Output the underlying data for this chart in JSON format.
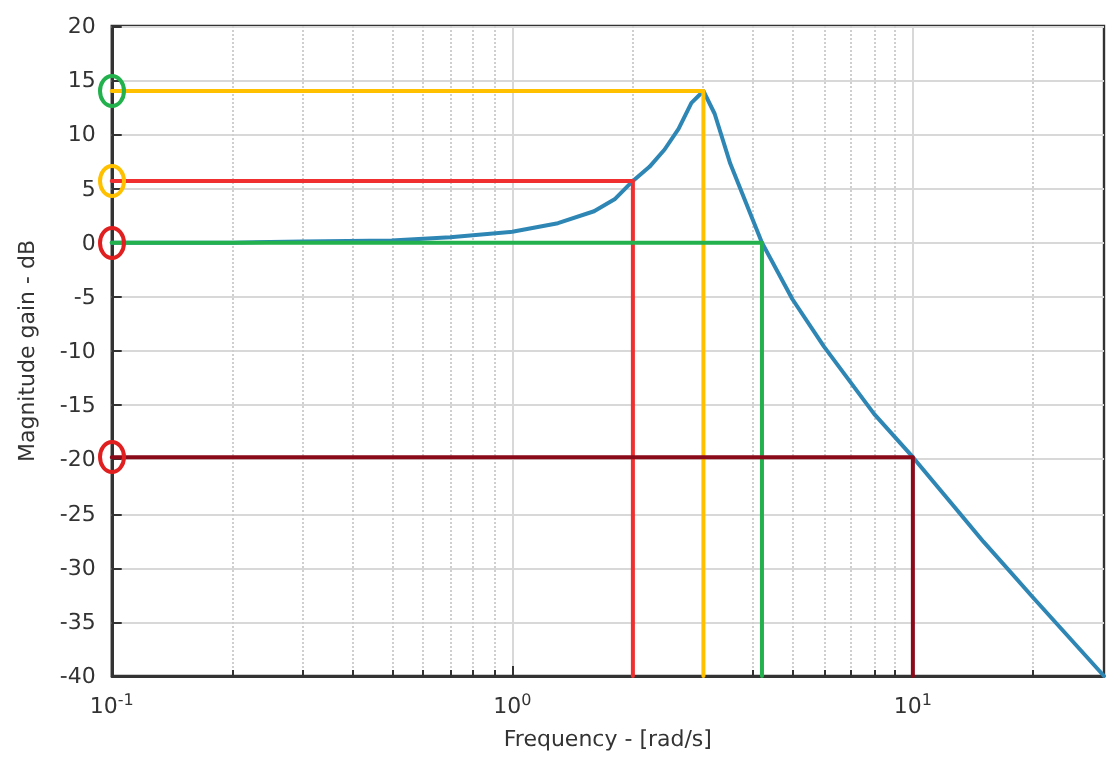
{
  "chart_data": {
    "type": "line",
    "xlabel": "Frequency - [rad/s]",
    "ylabel": "Magnitude gain - dB",
    "log": "x",
    "grid": true,
    "marker": "none",
    "line_style": "solid",
    "xlim": [
      0.1,
      30
    ],
    "xticks": [
      {
        "value": 0.1,
        "label": "10$^{-1}$"
      },
      {
        "value": 1,
        "label": "10$^{0}$"
      },
      {
        "value": 10,
        "label": "10$^{1}$"
      }
    ],
    "ylim": [
      -40,
      20
    ],
    "yticks": [
      -40,
      -35,
      -30,
      -25,
      -20,
      -15,
      -10,
      -5,
      0,
      5,
      10,
      15,
      20
    ],
    "series": [
      {
        "color": "#2e86b5",
        "x": [
          0.1,
          0.2,
          0.3,
          0.5,
          0.7,
          1.0,
          1.3,
          1.6,
          1.8,
          2.0,
          2.2,
          2.4,
          2.6,
          2.8,
          3.0,
          3.2,
          3.5,
          4.2,
          5,
          6,
          8,
          10,
          15,
          20,
          30
        ],
        "values": [
          0,
          0,
          0.1,
          0.2,
          0.5,
          1.0,
          1.8,
          2.9,
          4.0,
          5.7,
          7.0,
          8.6,
          10.5,
          12.9,
          14,
          11.9,
          7.3,
          0,
          -5.2,
          -9.6,
          -15.8,
          -19.8,
          -27.6,
          -32.8,
          -40
        ]
      },
      {
        "color": "#ffc000",
        "x": [
          0.1,
          3.0,
          3.0
        ],
        "values": [
          14,
          14,
          -40
        ]
      },
      {
        "color": "#f03030",
        "x": [
          0.1,
          2.0,
          2.0
        ],
        "values": [
          5.7,
          5.7,
          -40
        ]
      },
      {
        "color": "#22b14c",
        "x": [
          0.1,
          4.2,
          4.2
        ],
        "values": [
          0,
          0,
          -40
        ]
      },
      {
        "color": "#8b0a1a",
        "x": [
          0.1,
          10,
          10
        ],
        "values": [
          -19.8,
          -19.8,
          -40
        ]
      }
    ]
  }
}
